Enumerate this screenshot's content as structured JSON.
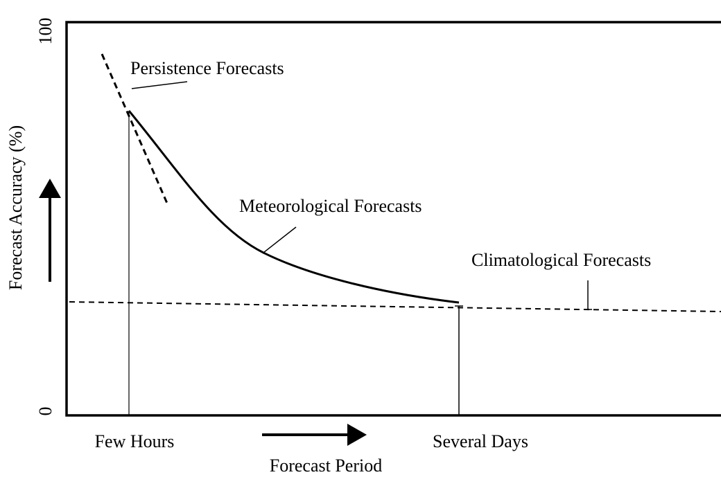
{
  "axes": {
    "y_label": "Forecast Accuracy (%)",
    "x_label": "Forecast Period",
    "y_top": 100,
    "y_bottom": 0,
    "x_left": "Few Hours",
    "x_right": "Several Days"
  },
  "curves": [
    {
      "label": "Persistence Forecasts"
    },
    {
      "label": "Meteorological Forecasts"
    },
    {
      "label": "Climatological Forecasts"
    }
  ]
}
